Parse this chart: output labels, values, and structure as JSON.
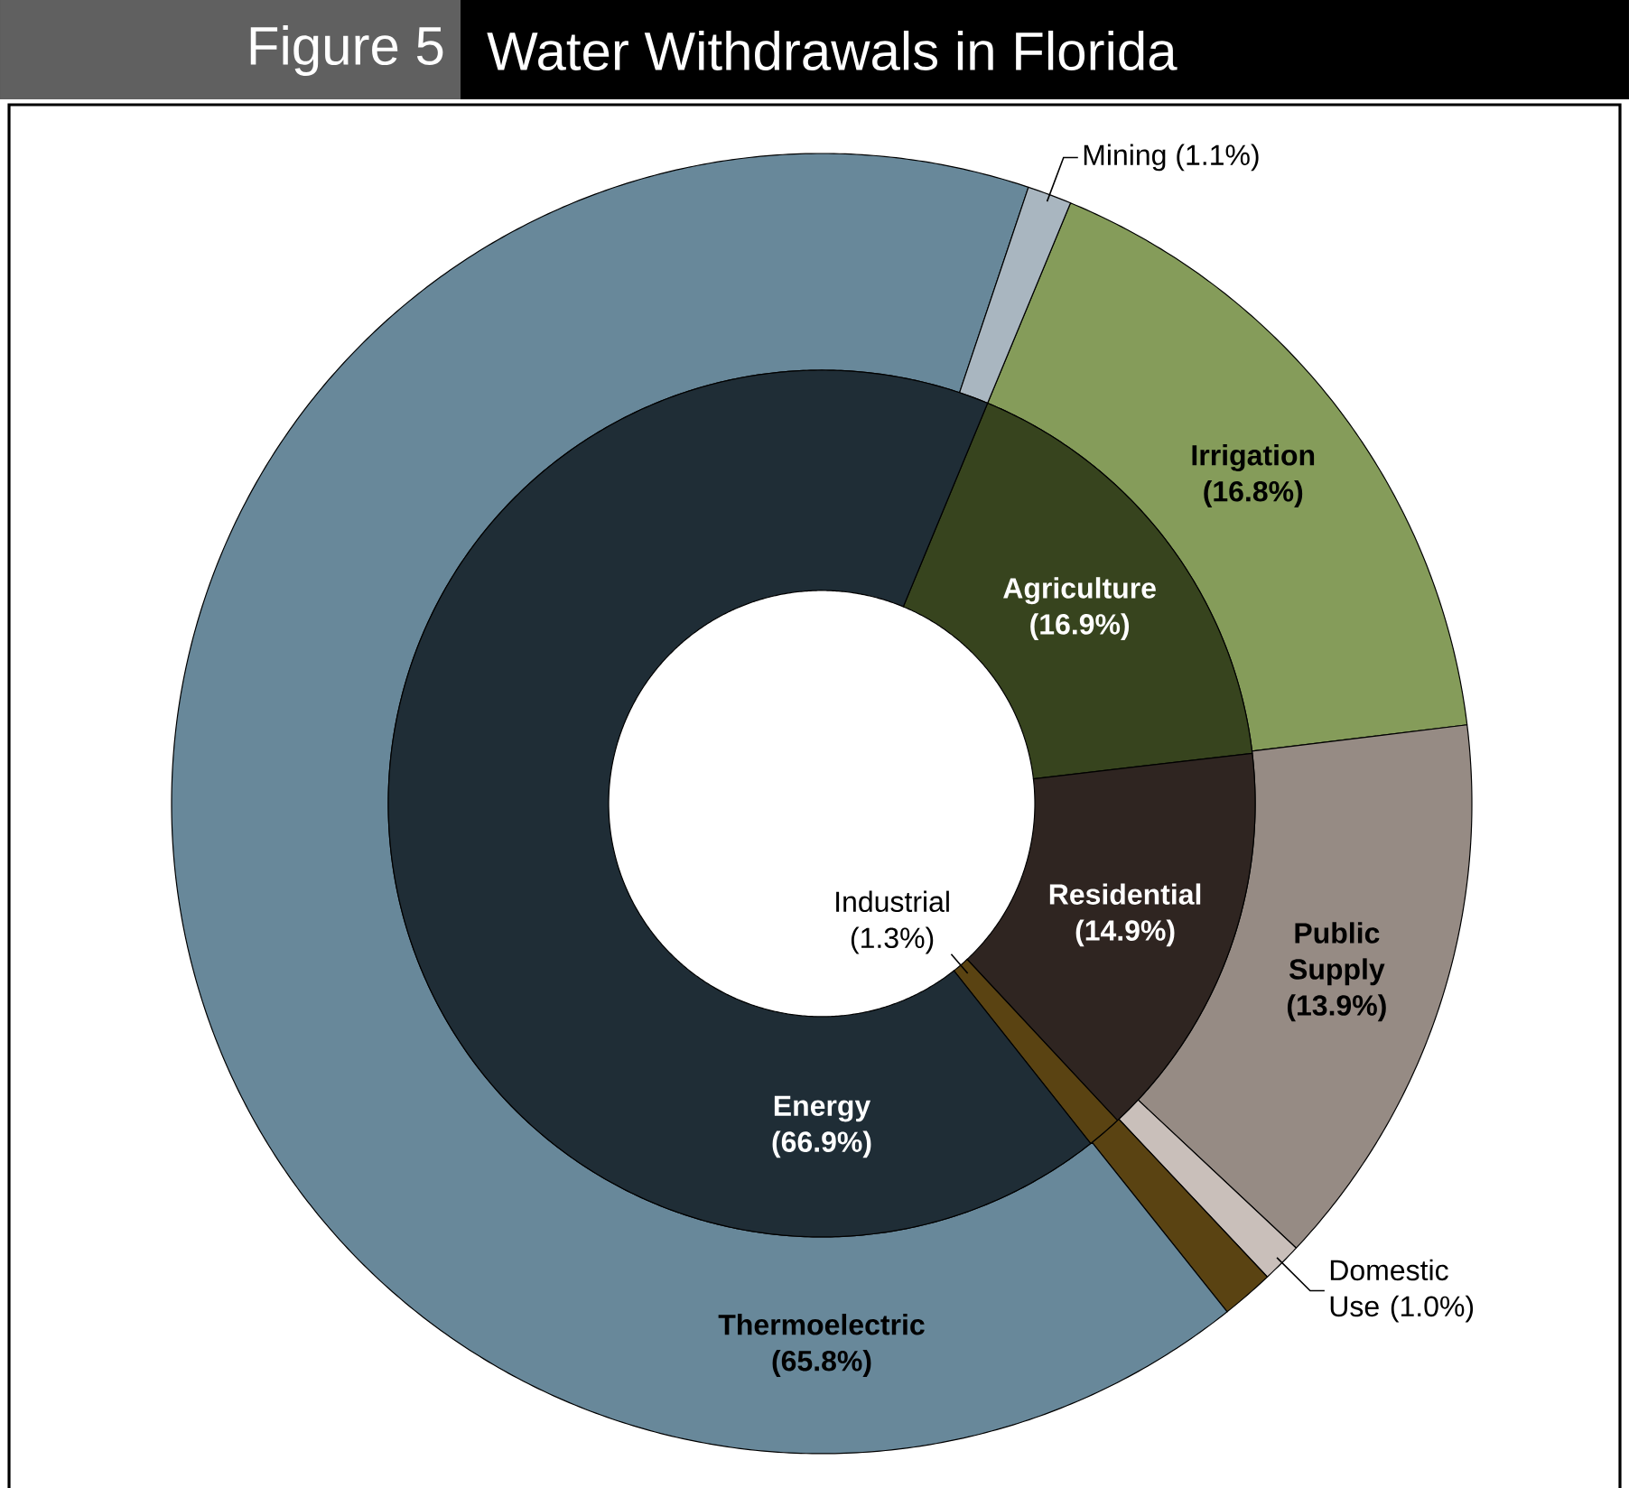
{
  "chart_data": [
    {
      "type": "donut",
      "title": "Water Withdrawals in Florida",
      "annotations": [
        "Figure 5"
      ],
      "categories": [
        "Irrigation",
        "Public Supply",
        "Domestic Use",
        null,
        "Thermoelectric",
        "Mining"
      ],
      "values": [
        16.8,
        13.9,
        1.0,
        1.3,
        65.8,
        1.1
      ],
      "value_labels": [
        "(16.8%)",
        "(13.9%)",
        "(1.0%)",
        null,
        "(65.8%)",
        "(1.1%)"
      ],
      "colors": [
        "#859c5a",
        "#968b84",
        "#c9bfba",
        "#5a4312",
        "#68889a",
        "#a9b6c0"
      ]
    },
    {
      "type": "donut",
      "categories": [
        "Agriculture",
        "Residential",
        "Industrial",
        "Energy"
      ],
      "values": [
        16.9,
        14.9,
        1.3,
        66.9
      ],
      "value_labels": [
        "(16.9%)",
        "(14.9%)",
        "(1.3%)",
        "(66.9%)"
      ],
      "colors": [
        "#37441e",
        "#2f2521",
        "#5a4312",
        "#1f2d36"
      ]
    }
  ]
}
